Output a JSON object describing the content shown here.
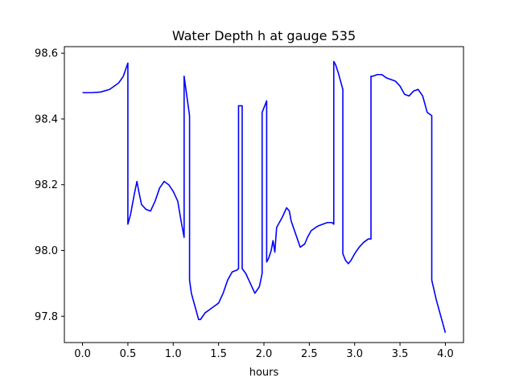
{
  "chart_data": {
    "type": "line",
    "title": "Water Depth h at gauge 535",
    "xlabel": "hours",
    "ylabel": "",
    "xlim": [
      -0.2,
      4.2
    ],
    "ylim": [
      97.72,
      98.62
    ],
    "xticks": [
      "0.0",
      "0.5",
      "1.0",
      "1.5",
      "2.0",
      "2.5",
      "3.0",
      "3.5",
      "4.0"
    ],
    "yticks": [
      "97.8",
      "98.0",
      "98.2",
      "98.4",
      "98.6"
    ],
    "grid": false,
    "series": [
      {
        "color": "#0000ff",
        "x": [
          0.0,
          0.1,
          0.2,
          0.3,
          0.4,
          0.45,
          0.5,
          0.5,
          0.53,
          0.57,
          0.6,
          0.62,
          0.65,
          0.7,
          0.75,
          0.8,
          0.85,
          0.9,
          0.95,
          1.0,
          1.05,
          1.08,
          1.12,
          1.12,
          1.18,
          1.18,
          1.2,
          1.25,
          1.28,
          1.3,
          1.35,
          1.4,
          1.45,
          1.5,
          1.55,
          1.6,
          1.65,
          1.7,
          1.72,
          1.72,
          1.76,
          1.76,
          1.8,
          1.85,
          1.9,
          1.95,
          1.98,
          1.98,
          2.03,
          2.03,
          2.05,
          2.08,
          2.1,
          2.12,
          2.14,
          2.16,
          2.2,
          2.25,
          2.28,
          2.3,
          2.35,
          2.4,
          2.45,
          2.48,
          2.52,
          2.57,
          2.6,
          2.65,
          2.7,
          2.75,
          2.77,
          2.77,
          2.79,
          2.82,
          2.87,
          2.87,
          2.9,
          2.93,
          2.96,
          3.0,
          3.05,
          3.1,
          3.15,
          3.18,
          3.18,
          3.2,
          3.25,
          3.3,
          3.35,
          3.4,
          3.45,
          3.5,
          3.55,
          3.6,
          3.65,
          3.7,
          3.75,
          3.8,
          3.85,
          3.85,
          3.9,
          3.93,
          3.95,
          3.97,
          4.0
        ],
        "y": [
          98.48,
          98.48,
          98.482,
          98.49,
          98.51,
          98.53,
          98.57,
          98.08,
          98.11,
          98.17,
          98.21,
          98.18,
          98.14,
          98.125,
          98.12,
          98.15,
          98.19,
          98.21,
          98.2,
          98.18,
          98.15,
          98.1,
          98.04,
          98.53,
          98.41,
          97.91,
          97.87,
          97.82,
          97.79,
          97.79,
          97.81,
          97.82,
          97.83,
          97.84,
          97.87,
          97.91,
          97.935,
          97.94,
          97.945,
          98.44,
          98.44,
          97.945,
          97.93,
          97.9,
          97.87,
          97.89,
          97.93,
          98.42,
          98.455,
          97.965,
          97.975,
          98.0,
          98.03,
          97.995,
          98.07,
          98.08,
          98.1,
          98.13,
          98.12,
          98.09,
          98.05,
          98.01,
          98.02,
          98.04,
          98.06,
          98.07,
          98.075,
          98.08,
          98.085,
          98.085,
          98.08,
          98.575,
          98.565,
          98.54,
          98.49,
          97.99,
          97.97,
          97.96,
          97.97,
          97.99,
          98.01,
          98.025,
          98.035,
          98.035,
          98.53,
          98.53,
          98.535,
          98.535,
          98.525,
          98.52,
          98.515,
          98.5,
          98.475,
          98.47,
          98.485,
          98.49,
          98.47,
          98.42,
          98.41,
          97.91,
          97.85,
          97.82,
          97.8,
          97.78,
          97.75
        ]
      }
    ]
  }
}
